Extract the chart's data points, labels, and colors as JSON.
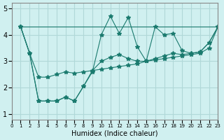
{
  "xlabel": "Humidex (Indice chaleur)",
  "ylabel": "",
  "background_color": "#d0f0f0",
  "grid_color": "#b0d8d8",
  "line_color": "#1a7a6e",
  "xlim": [
    0,
    23
  ],
  "ylim": [
    0.8,
    5.2
  ],
  "xticks": [
    0,
    1,
    2,
    3,
    4,
    5,
    6,
    7,
    8,
    9,
    10,
    11,
    12,
    13,
    14,
    15,
    16,
    17,
    18,
    19,
    20,
    21,
    22,
    23
  ],
  "yticks": [
    1,
    2,
    3,
    4,
    5
  ],
  "line1_x": [
    1,
    2,
    3,
    4,
    5,
    6,
    7,
    8,
    9,
    10,
    11,
    12,
    13,
    14,
    15,
    16,
    17,
    18,
    19,
    20,
    21,
    22,
    23
  ],
  "line1_y": [
    4.3,
    3.3,
    2.4,
    2.4,
    2.5,
    2.6,
    2.55,
    2.6,
    2.65,
    2.7,
    2.75,
    2.8,
    2.85,
    2.9,
    3.0,
    3.05,
    3.1,
    3.15,
    3.2,
    3.25,
    3.3,
    3.5,
    4.3
  ],
  "line2_x": [
    1,
    2,
    3,
    4,
    5,
    6,
    7,
    8,
    9,
    10,
    11,
    12,
    13,
    14,
    15,
    16,
    17,
    18,
    19,
    20,
    21,
    22,
    23
  ],
  "line2_y": [
    4.3,
    3.3,
    1.5,
    1.5,
    1.5,
    1.65,
    1.5,
    2.05,
    2.6,
    4.0,
    4.7,
    4.05,
    4.65,
    3.55,
    3.0,
    4.3,
    4.0,
    4.05,
    3.4,
    3.3,
    3.35,
    3.7,
    4.3
  ],
  "line3_x": [
    1,
    2,
    3,
    4,
    5,
    6,
    7,
    8,
    9,
    10,
    11,
    12,
    13,
    14,
    15,
    16,
    17,
    18,
    19,
    20,
    21,
    22,
    23
  ],
  "line3_y": [
    4.3,
    3.3,
    1.5,
    1.5,
    1.5,
    1.65,
    1.5,
    2.05,
    2.65,
    3.0,
    3.15,
    3.25,
    3.1,
    3.0,
    3.0,
    3.1,
    3.2,
    3.3,
    3.25,
    3.3,
    3.35,
    3.7,
    4.3
  ],
  "line4_x": [
    1,
    23
  ],
  "line4_y": [
    4.3,
    4.3
  ]
}
